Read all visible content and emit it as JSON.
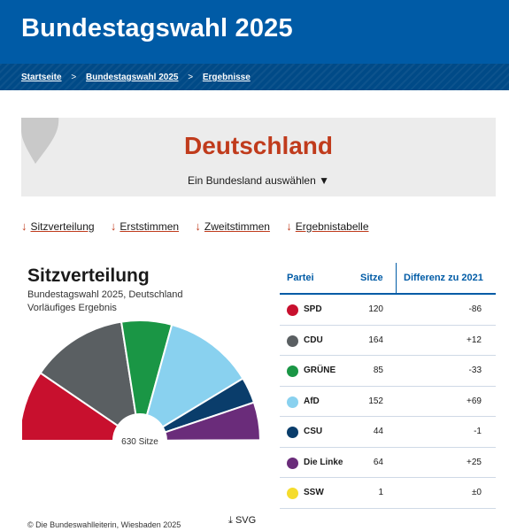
{
  "header": {
    "title": "Bundestagswahl 2025"
  },
  "breadcrumb": [
    {
      "label": "Startseite"
    },
    {
      "label": "Bundestagswahl 2025"
    },
    {
      "label": "Ergebnisse"
    }
  ],
  "breadcrumb_separator": ">",
  "region": {
    "title": "Deutschland",
    "select_label": "Ein Bundesland auswählen ▼"
  },
  "nav": [
    {
      "label": "Sitzverteilung"
    },
    {
      "label": "Erststimmen"
    },
    {
      "label": "Zweitstimmen"
    },
    {
      "label": "Ergebnistabelle"
    }
  ],
  "chart": {
    "title": "Sitzverteilung",
    "subtitle": "Bundestagswahl 2025, Deutschland",
    "subtitle2": "Vorläufiges Ergebnis",
    "center_label": "630 Sitze",
    "copyright": "© Die Bundeswahlleiterin, Wiesbaden 2025",
    "download_label": "SVG"
  },
  "table": {
    "headers": {
      "party": "Partei",
      "seats": "Sitze",
      "diff": "Differenz zu 2021"
    },
    "rows": [
      {
        "party": "SPD",
        "seats": "120",
        "diff": "-86",
        "color": "#c8102e"
      },
      {
        "party": "CDU",
        "seats": "164",
        "diff": "+12",
        "color": "#5a5f62"
      },
      {
        "party": "GRÜNE",
        "seats": "85",
        "diff": "-33",
        "color": "#1a9645"
      },
      {
        "party": "AfD",
        "seats": "152",
        "diff": "+69",
        "color": "#89d1ef"
      },
      {
        "party": "CSU",
        "seats": "44",
        "diff": "-1",
        "color": "#0a3d6b"
      },
      {
        "party": "Die Linke",
        "seats": "64",
        "diff": "+25",
        "color": "#6a2c7a"
      },
      {
        "party": "SSW",
        "seats": "1",
        "diff": "±0",
        "color": "#f5dc2c"
      }
    ]
  },
  "chart_data": {
    "type": "pie",
    "title": "Sitzverteilung",
    "total": 630,
    "categories": [
      "SPD",
      "CDU",
      "GRÜNE",
      "AfD",
      "CSU",
      "Die Linke",
      "SSW"
    ],
    "values": [
      120,
      164,
      85,
      152,
      44,
      64,
      1
    ],
    "colors": [
      "#c8102e",
      "#5a5f62",
      "#1a9645",
      "#89d1ef",
      "#0a3d6b",
      "#6a2c7a",
      "#f5dc2c"
    ]
  },
  "colors": {
    "header": "#005ba6",
    "accent": "#c03b1c"
  }
}
